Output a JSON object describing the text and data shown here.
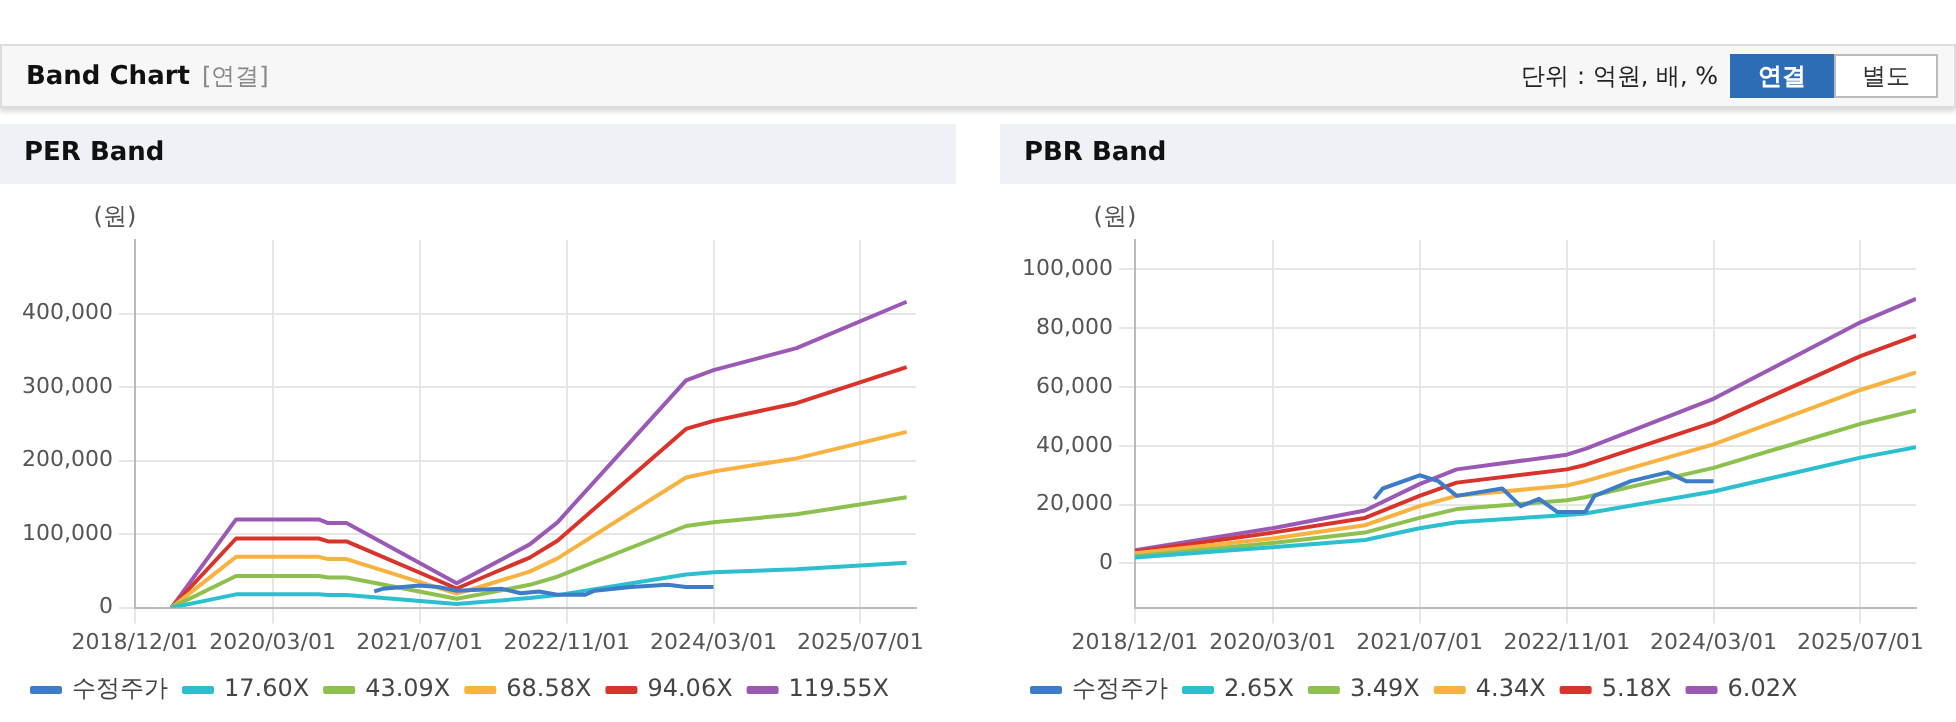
{
  "chart_data": [
    {
      "type": "line",
      "title": "PER Band",
      "ylabel": "(원)",
      "annotations": [
        "Band Chart",
        "[연결]",
        "단위 : 억원, 배, %",
        "연결",
        "별도"
      ],
      "xlim": [
        "2018-12-01",
        "2026-01-01"
      ],
      "xticks": [
        {
          "value": "2018-12-01",
          "label": "2018/12/01"
        },
        {
          "value": "2020-03-01",
          "label": "2020/03/01"
        },
        {
          "value": "2021-07-01",
          "label": "2021/07/01"
        },
        {
          "value": "2022-11-01",
          "label": "2022/11/01"
        },
        {
          "value": "2024-03-01",
          "label": "2024/03/01"
        },
        {
          "value": "2025-07-01",
          "label": "2025/07/01"
        }
      ],
      "ylim": [
        0,
        500000
      ],
      "yticks": [
        {
          "value": 0,
          "label": "0"
        },
        {
          "value": 100000,
          "label": "100,000"
        },
        {
          "value": 200000,
          "label": "200,000"
        },
        {
          "value": 300000,
          "label": "300,000"
        },
        {
          "value": 400000,
          "label": "400,000"
        }
      ],
      "grid": true,
      "legend": "bottom",
      "series": [
        {
          "name": "수정주가",
          "color": "#3d7cc9",
          "x": [
            "2021-02",
            "2021-03",
            "2021-07",
            "2021-09",
            "2021-11",
            "2022-04",
            "2022-06",
            "2022-08",
            "2022-10",
            "2023-01",
            "2023-02",
            "2023-06",
            "2023-10",
            "2023-12",
            "2024-03"
          ],
          "values": [
            22000,
            25500,
            30000,
            28000,
            23000,
            25500,
            19500,
            22000,
            17500,
            17500,
            23000,
            28000,
            31000,
            28000,
            28000
          ]
        },
        {
          "name": "17.60X",
          "color": "#2bbfcf",
          "x": [
            "2019-04",
            "2019-11",
            "2020-08",
            "2020-09",
            "2020-11",
            "2021-11",
            "2022-02",
            "2022-07",
            "2022-10",
            "2023-12",
            "2024-03",
            "2024-12",
            "2025-12"
          ],
          "values": [
            0,
            18000,
            18000,
            17000,
            17000,
            5000,
            8000,
            13000,
            17000,
            45000,
            48000,
            52000,
            61000
          ]
        },
        {
          "name": "43.09X",
          "color": "#8dc04f",
          "x": [
            "2019-04",
            "2019-11",
            "2020-08",
            "2020-09",
            "2020-11",
            "2021-11",
            "2022-02",
            "2022-07",
            "2022-10",
            "2023-12",
            "2024-03",
            "2024-12",
            "2025-12"
          ],
          "values": [
            0,
            43000,
            43000,
            41000,
            41000,
            12000,
            19000,
            31000,
            42000,
            111000,
            116000,
            127000,
            150000
          ]
        },
        {
          "name": "68.58X",
          "color": "#f7b240",
          "x": [
            "2019-04",
            "2019-11",
            "2020-08",
            "2020-09",
            "2020-11",
            "2021-11",
            "2022-02",
            "2022-07",
            "2022-10",
            "2023-12",
            "2024-03",
            "2024-12",
            "2025-12"
          ],
          "values": [
            0,
            69000,
            69000,
            66000,
            66000,
            19000,
            30000,
            49000,
            67000,
            177000,
            185000,
            203000,
            239000
          ]
        },
        {
          "name": "94.06X",
          "color": "#d9342b",
          "x": [
            "2019-04",
            "2019-11",
            "2020-08",
            "2020-09",
            "2020-11",
            "2021-11",
            "2022-02",
            "2022-07",
            "2022-10",
            "2023-12",
            "2024-03",
            "2024-12",
            "2025-12"
          ],
          "values": [
            0,
            94000,
            94000,
            90000,
            90000,
            26000,
            42000,
            68000,
            91000,
            243000,
            254000,
            278000,
            327000
          ]
        },
        {
          "name": "119.55X",
          "color": "#9b59b6",
          "x": [
            "2019-04",
            "2019-11",
            "2020-08",
            "2020-09",
            "2020-11",
            "2021-11",
            "2022-02",
            "2022-07",
            "2022-10",
            "2023-12",
            "2024-03",
            "2024-12",
            "2025-12"
          ],
          "values": [
            0,
            120000,
            120000,
            115000,
            115000,
            33000,
            53000,
            86000,
            116000,
            309000,
            323000,
            353000,
            416000
          ]
        }
      ]
    },
    {
      "type": "line",
      "title": "PBR Band",
      "ylabel": "(원)",
      "xlim": [
        "2018-12-01",
        "2026-01-01"
      ],
      "xticks": [
        {
          "value": "2018-12-01",
          "label": "2018/12/01"
        },
        {
          "value": "2020-03-01",
          "label": "2020/03/01"
        },
        {
          "value": "2021-07-01",
          "label": "2021/07/01"
        },
        {
          "value": "2022-11-01",
          "label": "2022/11/01"
        },
        {
          "value": "2024-03-01",
          "label": "2024/03/01"
        },
        {
          "value": "2025-07-01",
          "label": "2025/07/01"
        }
      ],
      "ylim": [
        -15000,
        110000
      ],
      "yticks": [
        {
          "value": 0,
          "label": "0"
        },
        {
          "value": 20000,
          "label": "20,000"
        },
        {
          "value": 40000,
          "label": "40,000"
        },
        {
          "value": 60000,
          "label": "60,000"
        },
        {
          "value": 80000,
          "label": "80,000"
        },
        {
          "value": 100000,
          "label": "100,000"
        }
      ],
      "grid": true,
      "legend": "bottom",
      "series": [
        {
          "name": "수정주가",
          "color": "#3d7cc9",
          "x": [
            "2021-02",
            "2021-03",
            "2021-07",
            "2021-09",
            "2021-11",
            "2022-04",
            "2022-06",
            "2022-08",
            "2022-10",
            "2023-01",
            "2023-02",
            "2023-06",
            "2023-10",
            "2023-12",
            "2024-03"
          ],
          "values": [
            22000,
            25500,
            30000,
            28000,
            23000,
            25500,
            19500,
            22000,
            17500,
            17500,
            23000,
            28000,
            31000,
            28000,
            28000
          ]
        },
        {
          "name": "2.65X",
          "color": "#2bbfcf",
          "x": [
            "2018-12",
            "2020-03",
            "2021-01",
            "2021-07",
            "2021-11",
            "2022-11",
            "2023-01",
            "2024-03",
            "2025-07",
            "2026-01"
          ],
          "values": [
            2000,
            5500,
            8000,
            12000,
            14000,
            16500,
            17000,
            24500,
            36000,
            39500
          ]
        },
        {
          "name": "3.49X",
          "color": "#8dc04f",
          "x": [
            "2018-12",
            "2020-03",
            "2021-01",
            "2021-07",
            "2021-11",
            "2022-11",
            "2023-01",
            "2024-03",
            "2025-07",
            "2026-01"
          ],
          "values": [
            2500,
            7000,
            10500,
            15500,
            18500,
            21500,
            22500,
            32500,
            47500,
            52000
          ]
        },
        {
          "name": "4.34X",
          "color": "#f7b240",
          "x": [
            "2018-12",
            "2020-03",
            "2021-01",
            "2021-07",
            "2021-11",
            "2022-11",
            "2023-01",
            "2024-03",
            "2025-07",
            "2026-01"
          ],
          "values": [
            3500,
            8500,
            13000,
            19500,
            23000,
            26500,
            28000,
            40500,
            59000,
            65000
          ]
        },
        {
          "name": "5.18X",
          "color": "#d9342b",
          "x": [
            "2018-12",
            "2020-03",
            "2021-01",
            "2021-07",
            "2021-11",
            "2022-11",
            "2023-01",
            "2024-03",
            "2025-07",
            "2026-01"
          ],
          "values": [
            4000,
            10500,
            15500,
            23000,
            27500,
            32000,
            33500,
            48000,
            70500,
            77500
          ]
        },
        {
          "name": "6.02X",
          "color": "#9b59b6",
          "x": [
            "2018-12",
            "2020-03",
            "2021-01",
            "2021-07",
            "2021-11",
            "2022-11",
            "2023-01",
            "2024-03",
            "2025-07",
            "2026-01"
          ],
          "values": [
            4500,
            12000,
            18000,
            27000,
            32000,
            37000,
            39000,
            56000,
            82000,
            90000
          ]
        }
      ]
    }
  ]
}
